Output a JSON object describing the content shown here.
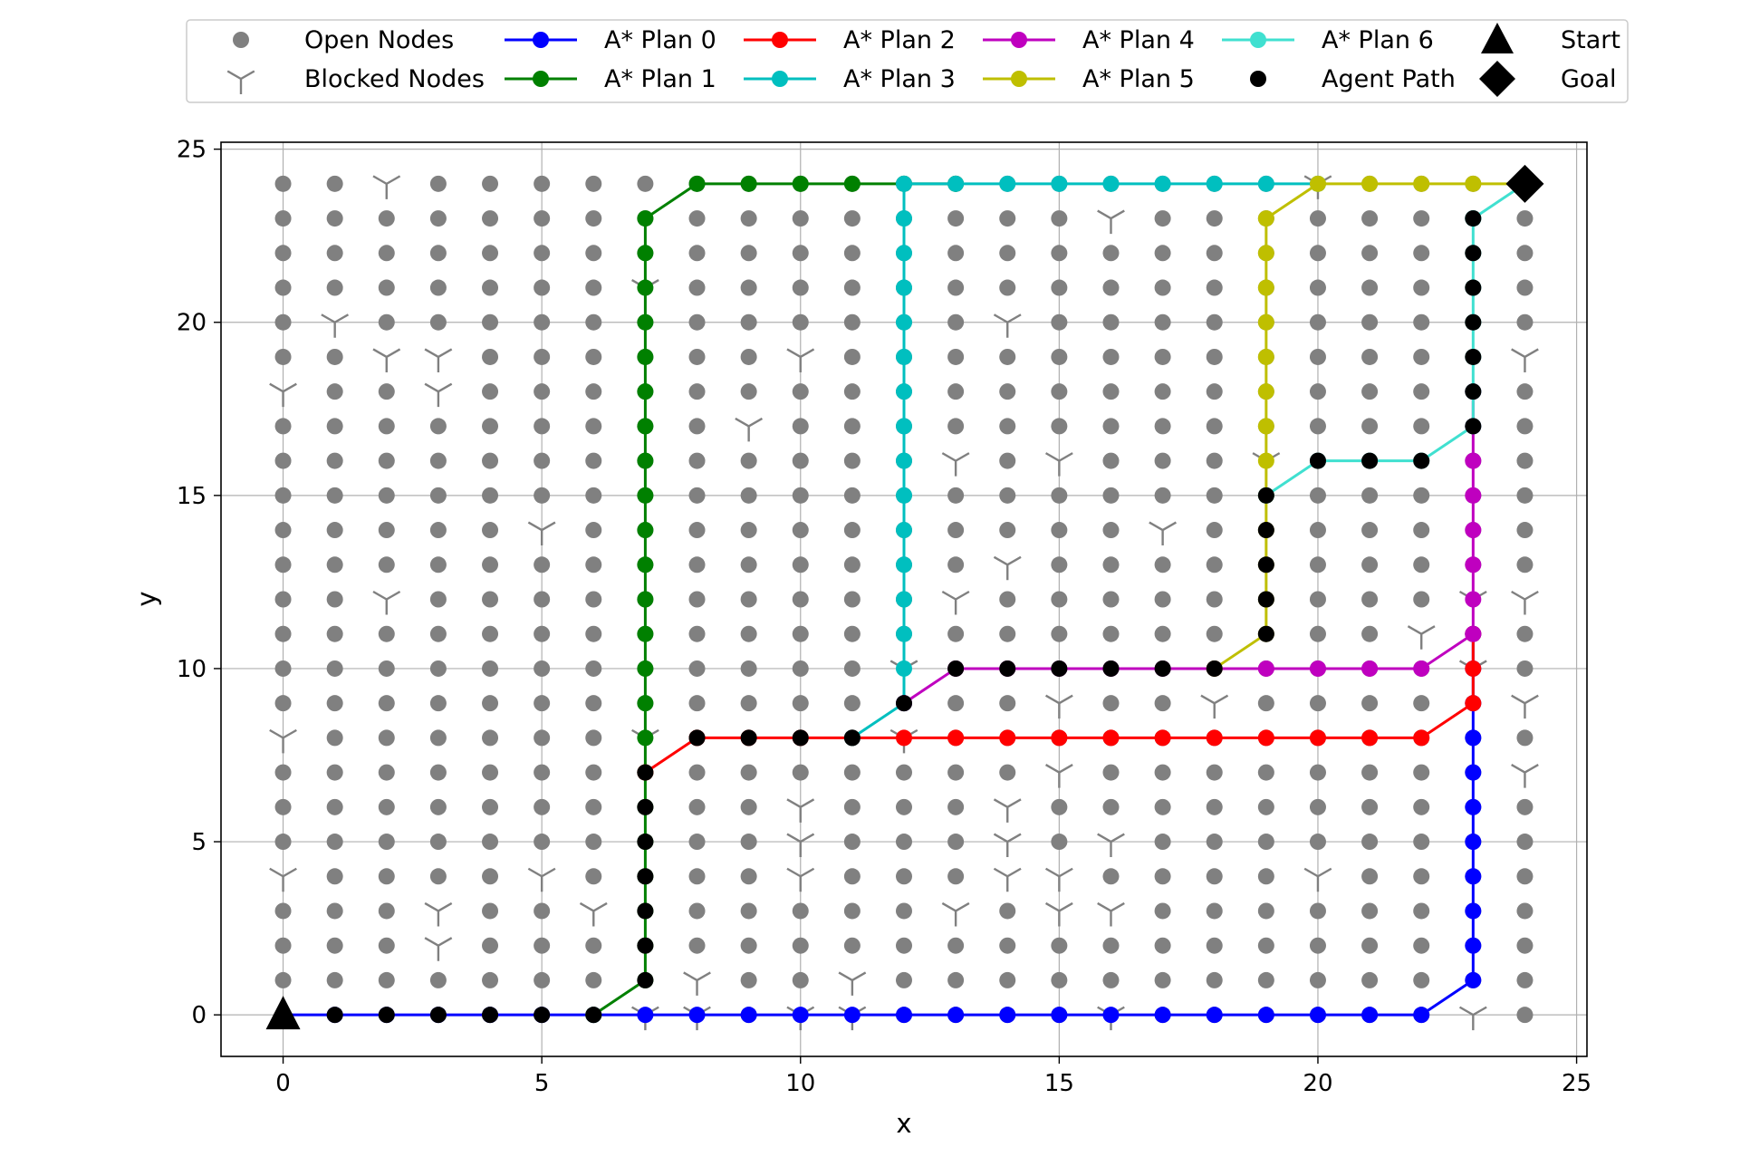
{
  "chart_data": {
    "type": "line",
    "title": "",
    "xlabel": "x",
    "ylabel": "y",
    "xlim": [
      -1.2,
      25.2
    ],
    "ylim": [
      -1.2,
      25.2
    ],
    "xticks": [
      0,
      5,
      10,
      15,
      20,
      25
    ],
    "yticks": [
      0,
      5,
      10,
      15,
      20,
      25
    ],
    "xtick_labels": [
      "0",
      "5",
      "10",
      "15",
      "20",
      "25"
    ],
    "ytick_labels": [
      "0",
      "5",
      "10",
      "15",
      "20",
      "25"
    ],
    "grid": true,
    "legend_placement": "top-center-outside",
    "grid_size": [
      25,
      25
    ],
    "open_nodes": {
      "name": "Open Nodes",
      "color": "#808080",
      "note_rule": "all integer nodes x,y in 0..24 not in blocked list"
    },
    "blocked_nodes": {
      "name": "Blocked Nodes",
      "color": "#808080",
      "points": [
        [
          2,
          24
        ],
        [
          20,
          24
        ],
        [
          16,
          23
        ],
        [
          7,
          21
        ],
        [
          1,
          20
        ],
        [
          14,
          20
        ],
        [
          2,
          19
        ],
        [
          3,
          19
        ],
        [
          10,
          19
        ],
        [
          24,
          19
        ],
        [
          0,
          18
        ],
        [
          3,
          18
        ],
        [
          9,
          17
        ],
        [
          13,
          16
        ],
        [
          15,
          16
        ],
        [
          19,
          16
        ],
        [
          5,
          14
        ],
        [
          17,
          14
        ],
        [
          14,
          13
        ],
        [
          2,
          12
        ],
        [
          13,
          12
        ],
        [
          23,
          12
        ],
        [
          24,
          12
        ],
        [
          22,
          11
        ],
        [
          12,
          10
        ],
        [
          23,
          10
        ],
        [
          15,
          9
        ],
        [
          18,
          9
        ],
        [
          24,
          9
        ],
        [
          0,
          8
        ],
        [
          7,
          8
        ],
        [
          12,
          8
        ],
        [
          15,
          7
        ],
        [
          24,
          7
        ],
        [
          10,
          6
        ],
        [
          14,
          6
        ],
        [
          10,
          5
        ],
        [
          14,
          5
        ],
        [
          16,
          5
        ],
        [
          0,
          4
        ],
        [
          5,
          4
        ],
        [
          10,
          4
        ],
        [
          14,
          4
        ],
        [
          15,
          4
        ],
        [
          20,
          4
        ],
        [
          3,
          3
        ],
        [
          6,
          3
        ],
        [
          13,
          3
        ],
        [
          15,
          3
        ],
        [
          16,
          3
        ],
        [
          3,
          2
        ],
        [
          8,
          1
        ],
        [
          11,
          1
        ],
        [
          7,
          0
        ],
        [
          8,
          0
        ],
        [
          10,
          0
        ],
        [
          11,
          0
        ],
        [
          16,
          0
        ],
        [
          23,
          0
        ]
      ]
    },
    "series": [
      {
        "name": "A* Plan 0",
        "color": "#0000ff",
        "x": [
          0,
          1,
          2,
          3,
          4,
          5,
          6,
          7,
          8,
          9,
          10,
          11,
          12,
          13,
          14,
          15,
          16,
          17,
          18,
          19,
          20,
          21,
          22,
          23,
          23,
          23,
          23,
          23,
          23,
          23,
          23,
          23,
          23,
          23
        ],
        "y": [
          0,
          0,
          0,
          0,
          0,
          0,
          0,
          0,
          0,
          0,
          0,
          0,
          0,
          0,
          0,
          0,
          0,
          0,
          0,
          0,
          0,
          0,
          0,
          1,
          2,
          3,
          4,
          5,
          6,
          7,
          8,
          9,
          10,
          11
        ]
      },
      {
        "name": "A* Plan 1",
        "color": "#008000",
        "x": [
          6,
          7,
          7,
          7,
          7,
          7,
          7,
          7,
          7,
          7,
          7,
          7,
          7,
          7,
          7,
          7,
          7,
          7,
          7,
          7,
          7,
          7,
          7,
          7,
          8,
          9,
          10,
          11,
          12,
          13
        ],
        "y": [
          0,
          1,
          2,
          3,
          4,
          5,
          6,
          7,
          8,
          9,
          10,
          11,
          12,
          13,
          14,
          15,
          16,
          17,
          18,
          19,
          20,
          21,
          22,
          23,
          24,
          24,
          24,
          24,
          24,
          24
        ]
      },
      {
        "name": "A* Plan 2",
        "color": "#ff0000",
        "x": [
          7,
          8,
          9,
          10,
          11,
          12,
          13,
          14,
          15,
          16,
          17,
          18,
          19,
          20,
          21,
          22,
          23,
          23,
          23
        ],
        "y": [
          7,
          8,
          8,
          8,
          8,
          8,
          8,
          8,
          8,
          8,
          8,
          8,
          8,
          8,
          8,
          8,
          9,
          10,
          11
        ]
      },
      {
        "name": "A* Plan 3",
        "color": "#00bfbf",
        "x": [
          11,
          12,
          12,
          12,
          12,
          12,
          12,
          12,
          12,
          12,
          12,
          12,
          12,
          12,
          12,
          12,
          12,
          13,
          14,
          15,
          16,
          17,
          18,
          19,
          20
        ],
        "y": [
          8,
          9,
          10,
          11,
          12,
          13,
          14,
          15,
          16,
          17,
          18,
          19,
          20,
          21,
          22,
          23,
          24,
          24,
          24,
          24,
          24,
          24,
          24,
          24,
          24
        ]
      },
      {
        "name": "A* Plan 4",
        "color": "#bf00bf",
        "x": [
          12,
          13,
          14,
          15,
          16,
          17,
          18,
          19,
          20,
          21,
          22,
          23,
          23,
          23,
          23,
          23,
          23,
          23,
          23
        ],
        "y": [
          9,
          10,
          10,
          10,
          10,
          10,
          10,
          10,
          10,
          10,
          10,
          11,
          12,
          13,
          14,
          15,
          16,
          17,
          18
        ]
      },
      {
        "name": "A* Plan 5",
        "color": "#bfbf00",
        "x": [
          18,
          19,
          19,
          19,
          19,
          19,
          19,
          19,
          19,
          19,
          19,
          19,
          19,
          19,
          20,
          21,
          22,
          23,
          24
        ],
        "y": [
          10,
          11,
          12,
          13,
          14,
          15,
          16,
          17,
          18,
          19,
          20,
          21,
          22,
          23,
          24,
          24,
          24,
          24,
          24
        ]
      },
      {
        "name": "A* Plan 6",
        "color": "#40e0d0",
        "x": [
          19,
          20,
          21,
          22,
          23,
          23,
          23,
          23,
          23,
          23,
          23,
          23,
          24
        ],
        "y": [
          15,
          16,
          16,
          16,
          17,
          18,
          19,
          20,
          21,
          22,
          23,
          23,
          24
        ]
      },
      {
        "name": "Agent Path",
        "color": "#000000",
        "x": [
          1,
          2,
          3,
          4,
          5,
          6,
          7,
          7,
          7,
          7,
          7,
          7,
          7,
          8,
          9,
          10,
          11,
          12,
          13,
          14,
          15,
          16,
          17,
          18,
          19,
          19,
          19,
          19,
          19,
          20,
          21,
          22,
          23,
          23,
          23,
          23,
          23,
          23,
          23
        ],
        "y": [
          0,
          0,
          0,
          0,
          0,
          0,
          1,
          2,
          3,
          4,
          5,
          6,
          7,
          8,
          8,
          8,
          8,
          9,
          10,
          10,
          10,
          10,
          10,
          10,
          11,
          12,
          13,
          14,
          15,
          16,
          16,
          16,
          17,
          18,
          19,
          20,
          21,
          22,
          23
        ]
      }
    ],
    "start": {
      "name": "Start",
      "x": 0,
      "y": 0,
      "color": "#000000"
    },
    "goal": {
      "name": "Goal",
      "x": 24,
      "y": 24,
      "color": "#000000"
    }
  }
}
